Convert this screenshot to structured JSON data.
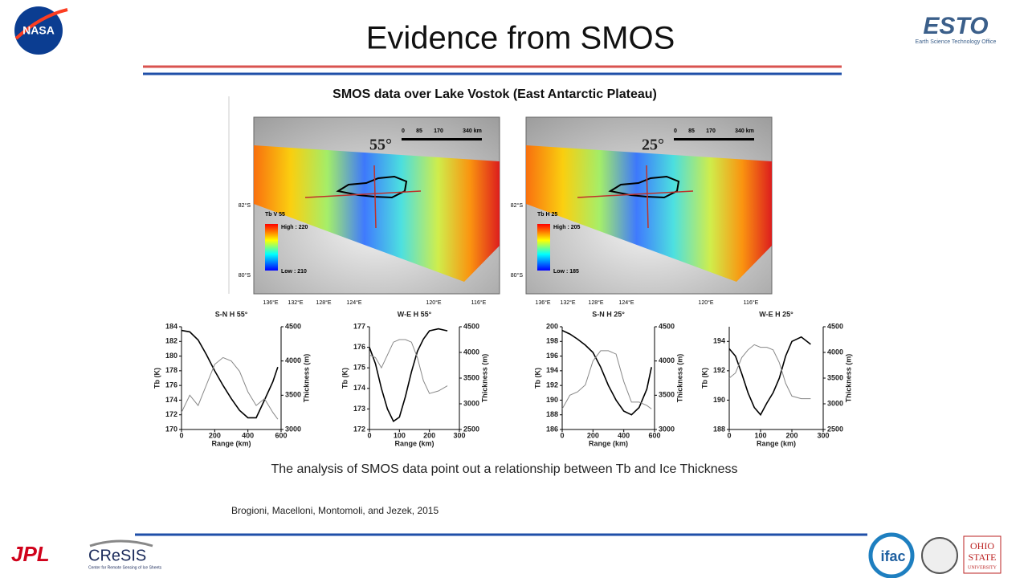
{
  "slide": {
    "title": "Evidence from SMOS",
    "subtitle": "SMOS data over Lake Vostok (East Antarctic Plateau)",
    "caption": "The analysis of SMOS data point out a relationship between Tb and Ice Thickness",
    "citation": "Brogioni, Macelloni, Montomoli, and Jezek, 2015",
    "logos": {
      "nasa": "NASA",
      "esto": "ESTO",
      "esto_sub": "Earth Science Technology Office",
      "jpl": "JPL",
      "cresis": "CReSIS",
      "cresis_sub": "Center for Remote Sensing of Ice Sheets",
      "ifac": "ifac",
      "ohio": [
        "OHIO",
        "STATE",
        "UNIVERSITY"
      ]
    },
    "maps": [
      {
        "angle": "55°",
        "scale": [
          "0",
          "85",
          "170",
          "340 km"
        ],
        "legend": "Tb V 55",
        "high": "High : 220",
        "low": "Low : 210",
        "lat": [
          "82°S",
          "80°S"
        ],
        "lon": [
          "136°E",
          "132°E",
          "128°E",
          "124°E",
          "120°E",
          "116°E"
        ]
      },
      {
        "angle": "25°",
        "scale": [
          "0",
          "85",
          "170",
          "340 km"
        ],
        "legend": "Tb H 25",
        "high": "High : 205",
        "low": "Low : 185",
        "lat": [
          "82°S",
          "80°S"
        ],
        "lon": [
          "136°E",
          "132°E",
          "128°E",
          "124°E",
          "120°E",
          "116°E"
        ]
      }
    ]
  },
  "chart_data": [
    {
      "type": "line",
      "title": "S-N H 55°",
      "xlabel": "Range (km)",
      "ylabel": "Tb (K)",
      "y2label": "Thickness (m)",
      "x": [
        0,
        50,
        100,
        150,
        200,
        250,
        300,
        350,
        400,
        450,
        500,
        550,
        580
      ],
      "xlim": [
        0,
        600
      ],
      "xticks": [
        0,
        200,
        400,
        600
      ],
      "ylim": [
        170,
        184
      ],
      "yticks": [
        170,
        172,
        174,
        176,
        178,
        180,
        182,
        184
      ],
      "y2lim": [
        3000,
        4500
      ],
      "y2ticks": [
        3000,
        3500,
        4000,
        4500
      ],
      "series": [
        {
          "color": "#000000",
          "values": [
            183.5,
            183.3,
            182.2,
            180.2,
            178,
            176,
            174.2,
            172.6,
            171.6,
            171.6,
            174,
            176.5,
            178.5
          ]
        },
        {
          "color": "#888888",
          "axis": "y2",
          "values": [
            3250,
            3500,
            3350,
            3650,
            3950,
            4050,
            4000,
            3850,
            3550,
            3350,
            3450,
            3250,
            3150
          ]
        }
      ]
    },
    {
      "type": "line",
      "title": "W-E H 55°",
      "xlabel": "Range (km)",
      "ylabel": "Tb (K)",
      "y2label": "Thickness (m)",
      "x": [
        0,
        20,
        40,
        60,
        80,
        100,
        120,
        140,
        160,
        180,
        200,
        230,
        260
      ],
      "xlim": [
        0,
        300
      ],
      "xticks": [
        0,
        100,
        200,
        300
      ],
      "ylim": [
        172,
        177
      ],
      "yticks": [
        172,
        173,
        174,
        175,
        176,
        177
      ],
      "y2lim": [
        2500,
        4500
      ],
      "y2ticks": [
        2500,
        3000,
        3500,
        4000,
        4500
      ],
      "series": [
        {
          "color": "#000000",
          "values": [
            176,
            175.2,
            174,
            173,
            172.4,
            172.6,
            173.6,
            174.8,
            175.8,
            176.4,
            176.8,
            176.9,
            176.8
          ]
        },
        {
          "color": "#888888",
          "axis": "y2",
          "values": [
            3950,
            3900,
            3700,
            3950,
            4200,
            4250,
            4250,
            4200,
            3900,
            3450,
            3200,
            3250,
            3350
          ]
        }
      ]
    },
    {
      "type": "line",
      "title": "S-N H 25°",
      "xlabel": "Range (km)",
      "ylabel": "Tb (K)",
      "y2label": "Thickness (m)",
      "x": [
        0,
        50,
        100,
        150,
        200,
        250,
        300,
        350,
        400,
        450,
        500,
        550,
        580
      ],
      "xlim": [
        0,
        600
      ],
      "xticks": [
        0,
        200,
        400,
        600
      ],
      "ylim": [
        186,
        200
      ],
      "yticks": [
        186,
        188,
        190,
        192,
        194,
        196,
        198,
        200
      ],
      "y2lim": [
        3000,
        4500
      ],
      "y2ticks": [
        3000,
        3500,
        4000,
        4500
      ],
      "series": [
        {
          "color": "#000000",
          "values": [
            199.5,
            199,
            198.3,
            197.5,
            196.5,
            194.5,
            192,
            190,
            188.5,
            188,
            189,
            191.5,
            194.5
          ]
        },
        {
          "color": "#888888",
          "axis": "y2",
          "values": [
            3300,
            3500,
            3550,
            3650,
            4000,
            4150,
            4150,
            4100,
            3700,
            3400,
            3400,
            3350,
            3300
          ]
        }
      ]
    },
    {
      "type": "line",
      "title": "W-E H 25°",
      "xlabel": "Range (km)",
      "ylabel": "Tb (K)",
      "y2label": "Thickness (m)",
      "x": [
        0,
        20,
        40,
        60,
        80,
        100,
        120,
        140,
        160,
        180,
        200,
        230,
        260
      ],
      "xlim": [
        0,
        300
      ],
      "xticks": [
        0,
        100,
        200,
        300
      ],
      "ylim": [
        188,
        195
      ],
      "yticks": [
        188,
        190,
        192,
        194
      ],
      "y2lim": [
        2500,
        4500
      ],
      "y2ticks": [
        2500,
        3000,
        3500,
        4000,
        4500
      ],
      "series": [
        {
          "color": "#000000",
          "values": [
            193.5,
            193,
            191.8,
            190.5,
            189.5,
            189,
            189.8,
            190.5,
            191.5,
            193,
            194,
            194.3,
            193.8
          ]
        },
        {
          "color": "#888888",
          "axis": "y2",
          "values": [
            3500,
            3600,
            3900,
            4050,
            4150,
            4100,
            4100,
            4050,
            3800,
            3400,
            3150,
            3100,
            3100
          ]
        }
      ]
    }
  ]
}
